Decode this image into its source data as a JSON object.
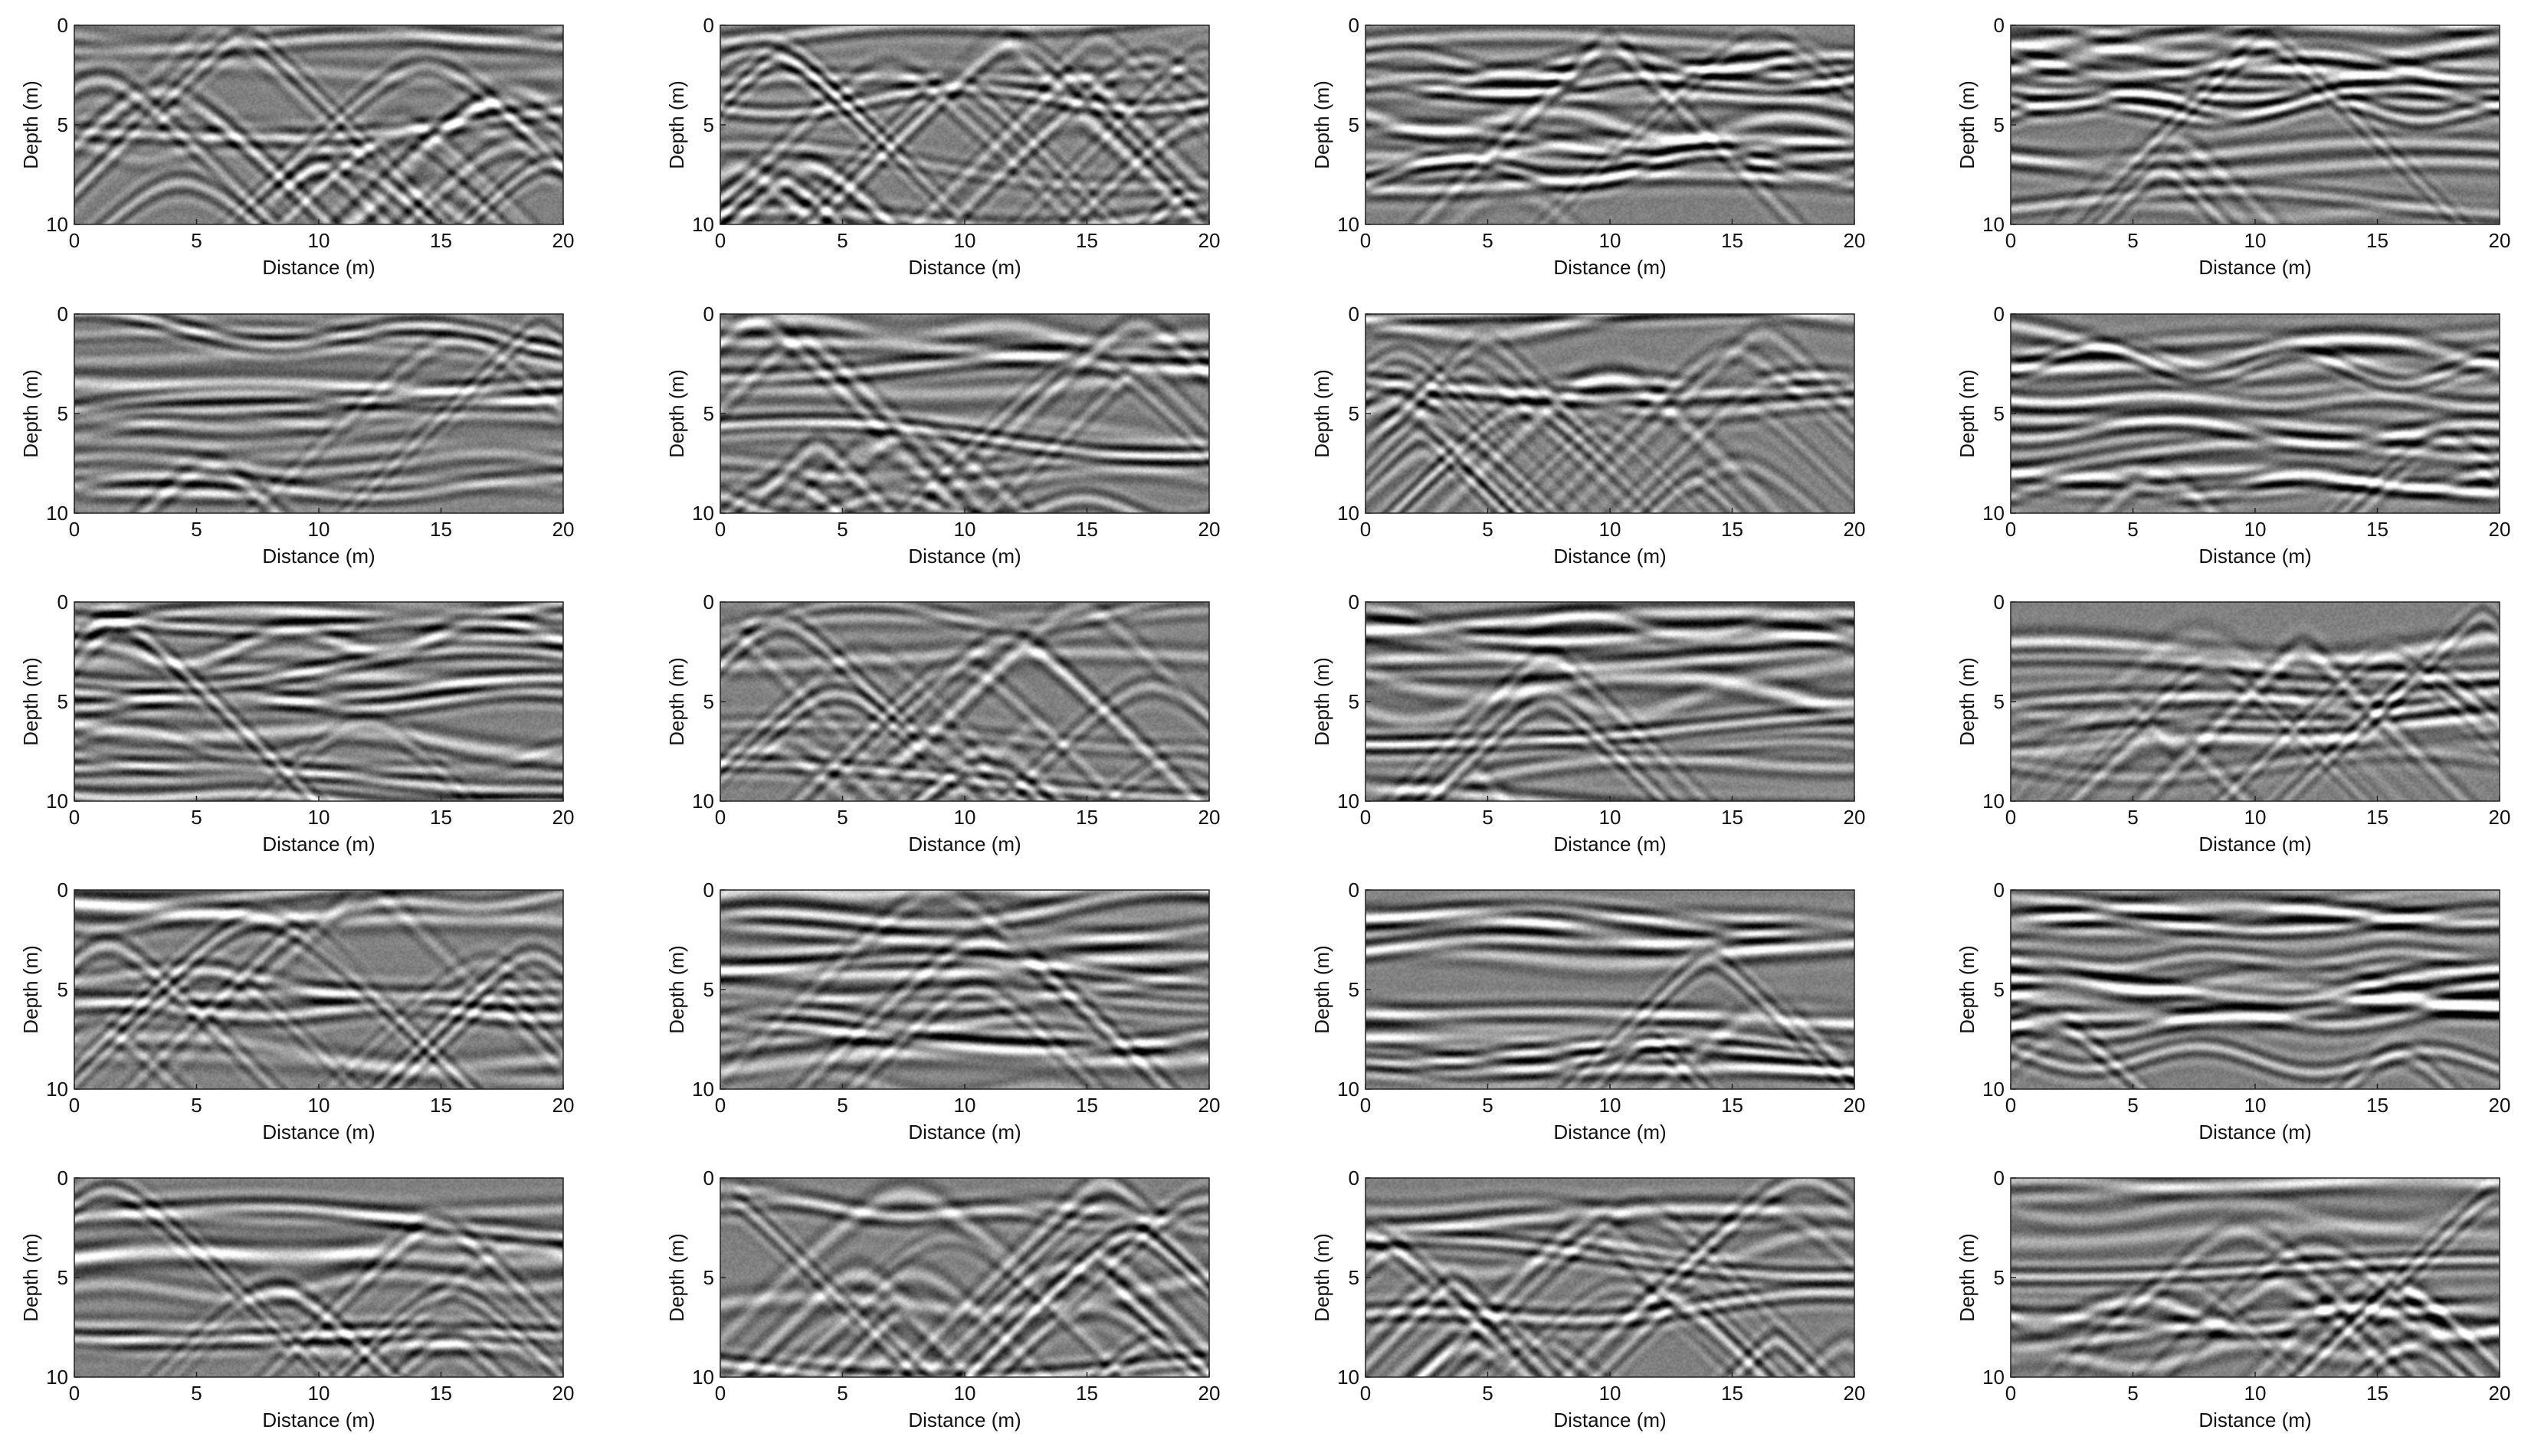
{
  "figure": {
    "rows": 5,
    "cols": 4
  },
  "chart_data": [
    {
      "type": "heatmap",
      "panel": 1,
      "colormap": "gray",
      "xlabel": "Distance (m)",
      "ylabel": "Depth (m)",
      "xlim": [
        0,
        20
      ],
      "ylim": [
        0,
        10
      ],
      "y_reversed": true,
      "xticks": [
        0,
        5,
        10,
        15,
        20
      ],
      "yticks": [
        0,
        5,
        10
      ],
      "texture": "diffraction"
    },
    {
      "type": "heatmap",
      "panel": 2,
      "colormap": "gray",
      "xlabel": "Distance (m)",
      "ylabel": "Depth (m)",
      "xlim": [
        0,
        20
      ],
      "ylim": [
        0,
        10
      ],
      "y_reversed": true,
      "xticks": [
        0,
        5,
        10,
        15,
        20
      ],
      "yticks": [
        0,
        5,
        10
      ],
      "texture": "diffraction"
    },
    {
      "type": "heatmap",
      "panel": 3,
      "colormap": "gray",
      "xlabel": "Distance (m)",
      "ylabel": "Depth (m)",
      "xlim": [
        0,
        20
      ],
      "ylim": [
        0,
        10
      ],
      "y_reversed": true,
      "xticks": [
        0,
        5,
        10,
        15,
        20
      ],
      "yticks": [
        0,
        5,
        10
      ],
      "texture": "layered"
    },
    {
      "type": "heatmap",
      "panel": 4,
      "colormap": "gray",
      "xlabel": "Distance (m)",
      "ylabel": "Depth (m)",
      "xlim": [
        0,
        20
      ],
      "ylim": [
        0,
        10
      ],
      "y_reversed": true,
      "xticks": [
        0,
        5,
        10,
        15,
        20
      ],
      "yticks": [
        0,
        5,
        10
      ],
      "texture": "layered"
    },
    {
      "type": "heatmap",
      "panel": 5,
      "colormap": "gray",
      "xlabel": "Distance (m)",
      "ylabel": "Depth (m)",
      "xlim": [
        0,
        20
      ],
      "ylim": [
        0,
        10
      ],
      "y_reversed": true,
      "xticks": [
        0,
        5,
        10,
        15,
        20
      ],
      "yticks": [
        0,
        5,
        10
      ],
      "texture": "layered"
    },
    {
      "type": "heatmap",
      "panel": 6,
      "colormap": "gray",
      "xlabel": "Distance (m)",
      "ylabel": "Depth (m)",
      "xlim": [
        0,
        20
      ],
      "ylim": [
        0,
        10
      ],
      "y_reversed": true,
      "xticks": [
        0,
        5,
        10,
        15,
        20
      ],
      "yticks": [
        0,
        5,
        10
      ],
      "texture": "mixed"
    },
    {
      "type": "heatmap",
      "panel": 7,
      "colormap": "gray",
      "xlabel": "Distance (m)",
      "ylabel": "Depth (m)",
      "xlim": [
        0,
        20
      ],
      "ylim": [
        0,
        10
      ],
      "y_reversed": true,
      "xticks": [
        0,
        5,
        10,
        15,
        20
      ],
      "yticks": [
        0,
        5,
        10
      ],
      "texture": "diffraction"
    },
    {
      "type": "heatmap",
      "panel": 8,
      "colormap": "gray",
      "xlabel": "Distance (m)",
      "ylabel": "Depth (m)",
      "xlim": [
        0,
        20
      ],
      "ylim": [
        0,
        10
      ],
      "y_reversed": true,
      "xticks": [
        0,
        5,
        10,
        15,
        20
      ],
      "yticks": [
        0,
        5,
        10
      ],
      "texture": "layered"
    },
    {
      "type": "heatmap",
      "panel": 9,
      "colormap": "gray",
      "xlabel": "Distance (m)",
      "ylabel": "Depth (m)",
      "xlim": [
        0,
        20
      ],
      "ylim": [
        0,
        10
      ],
      "y_reversed": true,
      "xticks": [
        0,
        5,
        10,
        15,
        20
      ],
      "yticks": [
        0,
        5,
        10
      ],
      "texture": "layered"
    },
    {
      "type": "heatmap",
      "panel": 10,
      "colormap": "gray",
      "xlabel": "Distance (m)",
      "ylabel": "Depth (m)",
      "xlim": [
        0,
        20
      ],
      "ylim": [
        0,
        10
      ],
      "y_reversed": true,
      "xticks": [
        0,
        5,
        10,
        15,
        20
      ],
      "yticks": [
        0,
        5,
        10
      ],
      "texture": "diffraction"
    },
    {
      "type": "heatmap",
      "panel": 11,
      "colormap": "gray",
      "xlabel": "Distance (m)",
      "ylabel": "Depth (m)",
      "xlim": [
        0,
        20
      ],
      "ylim": [
        0,
        10
      ],
      "y_reversed": true,
      "xticks": [
        0,
        5,
        10,
        15,
        20
      ],
      "yticks": [
        0,
        5,
        10
      ],
      "texture": "layered"
    },
    {
      "type": "heatmap",
      "panel": 12,
      "colormap": "gray",
      "xlabel": "Distance (m)",
      "ylabel": "Depth (m)",
      "xlim": [
        0,
        20
      ],
      "ylim": [
        0,
        10
      ],
      "y_reversed": true,
      "xticks": [
        0,
        5,
        10,
        15,
        20
      ],
      "yticks": [
        0,
        5,
        10
      ],
      "texture": "mixed"
    },
    {
      "type": "heatmap",
      "panel": 13,
      "colormap": "gray",
      "xlabel": "Distance (m)",
      "ylabel": "Depth (m)",
      "xlim": [
        0,
        20
      ],
      "ylim": [
        0,
        10
      ],
      "y_reversed": true,
      "xticks": [
        0,
        5,
        10,
        15,
        20
      ],
      "yticks": [
        0,
        5,
        10
      ],
      "texture": "mixed"
    },
    {
      "type": "heatmap",
      "panel": 14,
      "colormap": "gray",
      "xlabel": "Distance (m)",
      "ylabel": "Depth (m)",
      "xlim": [
        0,
        20
      ],
      "ylim": [
        0,
        10
      ],
      "y_reversed": true,
      "xticks": [
        0,
        5,
        10,
        15,
        20
      ],
      "yticks": [
        0,
        5,
        10
      ],
      "texture": "layered"
    },
    {
      "type": "heatmap",
      "panel": 15,
      "colormap": "gray",
      "xlabel": "Distance (m)",
      "ylabel": "Depth (m)",
      "xlim": [
        0,
        20
      ],
      "ylim": [
        0,
        10
      ],
      "y_reversed": true,
      "xticks": [
        0,
        5,
        10,
        15,
        20
      ],
      "yticks": [
        0,
        5,
        10
      ],
      "texture": "layered"
    },
    {
      "type": "heatmap",
      "panel": 16,
      "colormap": "gray",
      "xlabel": "Distance (m)",
      "ylabel": "Depth (m)",
      "xlim": [
        0,
        20
      ],
      "ylim": [
        0,
        10
      ],
      "y_reversed": true,
      "xticks": [
        0,
        5,
        10,
        15,
        20
      ],
      "yticks": [
        0,
        5,
        10
      ],
      "texture": "layered"
    },
    {
      "type": "heatmap",
      "panel": 17,
      "colormap": "gray",
      "xlabel": "Distance (m)",
      "ylabel": "Depth (m)",
      "xlim": [
        0,
        20
      ],
      "ylim": [
        0,
        10
      ],
      "y_reversed": true,
      "xticks": [
        0,
        5,
        10,
        15,
        20
      ],
      "yticks": [
        0,
        5,
        10
      ],
      "texture": "mixed"
    },
    {
      "type": "heatmap",
      "panel": 18,
      "colormap": "gray",
      "xlabel": "Distance (m)",
      "ylabel": "Depth (m)",
      "xlim": [
        0,
        20
      ],
      "ylim": [
        0,
        10
      ],
      "y_reversed": true,
      "xticks": [
        0,
        5,
        10,
        15,
        20
      ],
      "yticks": [
        0,
        5,
        10
      ],
      "texture": "diffraction"
    },
    {
      "type": "heatmap",
      "panel": 19,
      "colormap": "gray",
      "xlabel": "Distance (m)",
      "ylabel": "Depth (m)",
      "xlim": [
        0,
        20
      ],
      "ylim": [
        0,
        10
      ],
      "y_reversed": true,
      "xticks": [
        0,
        5,
        10,
        15,
        20
      ],
      "yticks": [
        0,
        5,
        10
      ],
      "texture": "diffraction"
    },
    {
      "type": "heatmap",
      "panel": 20,
      "colormap": "gray",
      "xlabel": "Distance (m)",
      "ylabel": "Depth (m)",
      "xlim": [
        0,
        20
      ],
      "ylim": [
        0,
        10
      ],
      "y_reversed": true,
      "xticks": [
        0,
        5,
        10,
        15,
        20
      ],
      "yticks": [
        0,
        5,
        10
      ],
      "texture": "mixed"
    }
  ]
}
